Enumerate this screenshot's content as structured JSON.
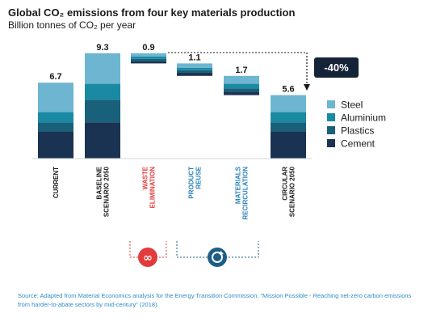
{
  "chart_data": {
    "type": "bar",
    "title": "Global CO₂ emissions from four key materials production",
    "subtitle": "Billion tonnes of CO₂ per year",
    "ylim": [
      0,
      10
    ],
    "legend_position": "right",
    "layers": [
      "Cement",
      "Plastics",
      "Aluminium",
      "Steel"
    ],
    "colors": {
      "Steel": "#6db5d0",
      "Aluminium": "#1a8aa3",
      "Plastics": "#19607a",
      "Cement": "#1b3352"
    },
    "legend": [
      {
        "name": "Steel",
        "color": "#6db5d0"
      },
      {
        "name": "Aluminium",
        "color": "#1a8aa3"
      },
      {
        "name": "Plastics",
        "color": "#19607a"
      },
      {
        "name": "Cement",
        "color": "#1b3352"
      }
    ],
    "bars": [
      {
        "label": [
          "CURRENT"
        ],
        "label_color": "#1a1a1a",
        "value_label": "6.7",
        "base": 0,
        "segments": {
          "Cement": 2.4,
          "Plastics": 0.8,
          "Aluminium": 0.9,
          "Steel": 2.6
        }
      },
      {
        "label": [
          "BASELINE",
          "SCENARIO 2050"
        ],
        "label_color": "#1a1a1a",
        "value_label": "9.3",
        "base": 0,
        "segments": {
          "Cement": 3.2,
          "Plastics": 2.0,
          "Aluminium": 1.4,
          "Steel": 2.7
        }
      },
      {
        "label": [
          "WASTE",
          "ELIMINATION"
        ],
        "label_color": "#e23b3b",
        "value_label": "0.9",
        "base": 8.4,
        "segments": {
          "Cement": 0.2,
          "Plastics": 0.2,
          "Aluminium": 0.2,
          "Steel": 0.3
        }
      },
      {
        "label": [
          "PRODUCT",
          "REUSE"
        ],
        "label_color": "#2a82b8",
        "value_label": "1.1",
        "base": 7.3,
        "segments": {
          "Cement": 0.3,
          "Plastics": 0.2,
          "Aluminium": 0.2,
          "Steel": 0.4
        }
      },
      {
        "label": [
          "MATERIALS",
          "RECIRCULATION"
        ],
        "label_color": "#2a82b8",
        "value_label": "1.7",
        "base": 5.6,
        "segments": {
          "Cement": 0.3,
          "Plastics": 0.3,
          "Aluminium": 0.4,
          "Steel": 0.7
        }
      },
      {
        "label": [
          "CIRCULAR",
          "SCENARIO 2050"
        ],
        "label_color": "#1a1a1a",
        "value_label": "5.6",
        "base": 0,
        "segments": {
          "Cement": 2.4,
          "Plastics": 0.8,
          "Aluminium": 0.9,
          "Steel": 1.5
        }
      }
    ],
    "reduction_label": "-40%"
  },
  "source_text": "Source: Adapted from Material Economics analysis for the Energy Transition Commission, “Mission Possible - Reaching net-zero carbon emissions from harder-to-abate sectors by mid-century” (2018)."
}
